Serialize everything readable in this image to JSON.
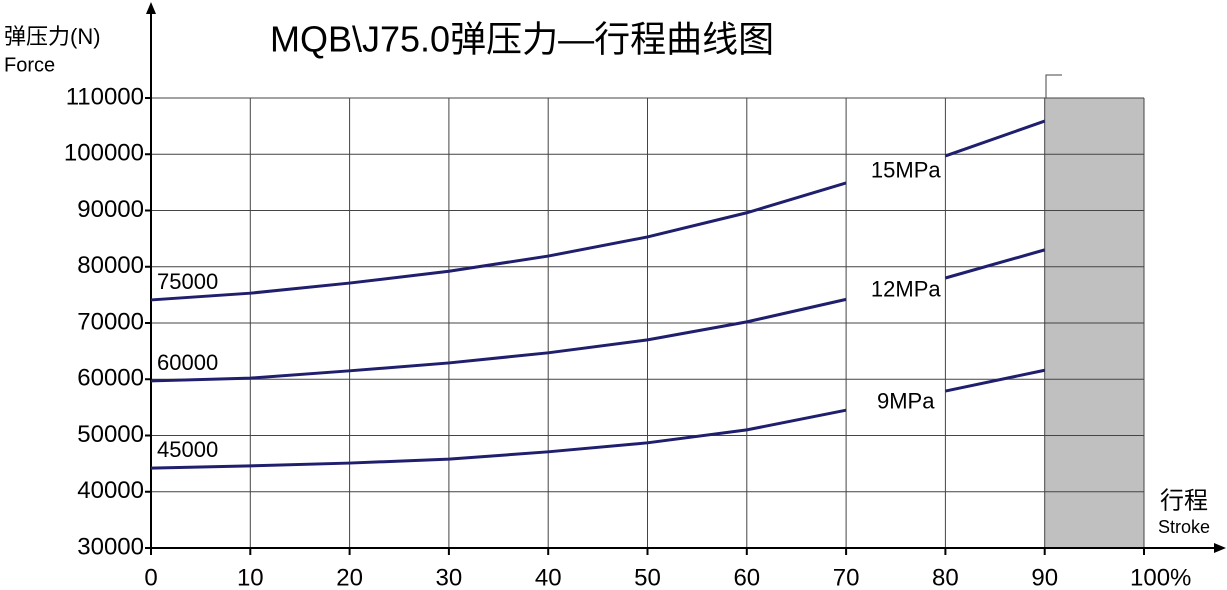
{
  "chart_data": {
    "type": "line",
    "title": "MQB\\J75.0弹压力—行程曲线图",
    "y_label": "弹压力(N)",
    "y_label_en": "Force",
    "x_label": "行程",
    "x_label_en": "Stroke",
    "x": [
      0,
      10,
      20,
      30,
      40,
      50,
      60,
      70,
      75,
      80,
      90
    ],
    "series": [
      {
        "name": "15MPa",
        "start_label": "75000",
        "color": "#1f1f6e",
        "values": [
          74100,
          75300,
          77100,
          79200,
          81900,
          85300,
          89600,
          94900,
          null,
          99700,
          105900
        ]
      },
      {
        "name": "12MPa",
        "start_label": "60000",
        "color": "#1f1f6e",
        "values": [
          59700,
          60200,
          61500,
          62900,
          64700,
          67000,
          70200,
          74200,
          null,
          78000,
          83000
        ]
      },
      {
        "name": "9MPa",
        "start_label": "45000",
        "color": "#1f1f6e",
        "values": [
          44200,
          44600,
          45100,
          45800,
          47100,
          48700,
          51000,
          54500,
          null,
          57900,
          61600
        ]
      }
    ],
    "shaded_region": [
      90,
      100
    ],
    "shaded_color": "#c0c0c0",
    "xlim": [
      0,
      100
    ],
    "xticks": [
      0,
      10,
      20,
      30,
      40,
      50,
      60,
      70,
      80,
      90,
      {
        "value": 100,
        "label": "100%"
      }
    ],
    "ylim": [
      30000,
      110000
    ],
    "yticks": [
      30000,
      40000,
      50000,
      60000,
      70000,
      80000,
      90000,
      100000,
      110000
    ],
    "grid": true
  }
}
